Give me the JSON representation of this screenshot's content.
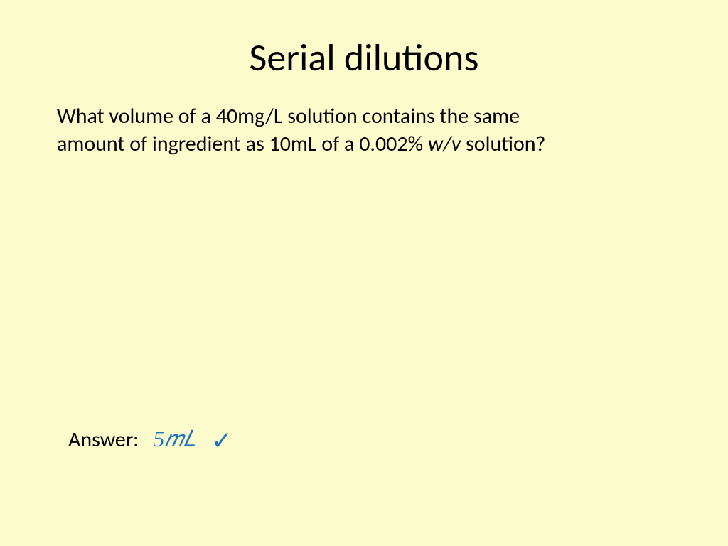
{
  "background_color": "#fbfbcc",
  "title": {
    "text": "Serial dilutions",
    "fontsize": 54,
    "color": "#000000",
    "weight": 400,
    "align": "center"
  },
  "question": {
    "line1": "What volume of a 40mg/L solution contains the same",
    "line2_pre": "amount of ingredient as 10mL of a 0.002% ",
    "line2_italic": "w/v",
    "line2_post": " solution?",
    "fontsize": 30,
    "color": "#000000"
  },
  "answer": {
    "label": "Answer:",
    "value": "5𝑚𝐿",
    "value_color": "#1f74c4",
    "value_fontsize": 32,
    "check_symbol": "✓",
    "check_color": "#1f74c4"
  }
}
